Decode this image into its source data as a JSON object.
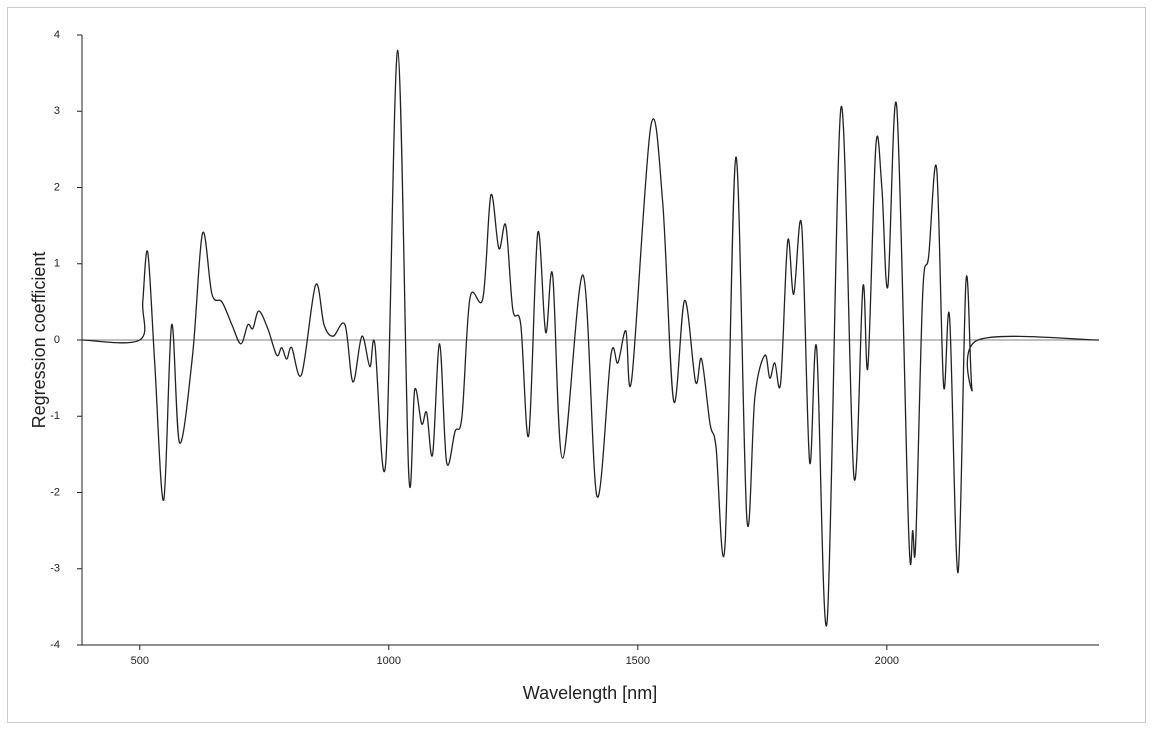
{
  "chart_data": {
    "type": "line",
    "xlabel": "Wavelength [nm]",
    "ylabel": "Regression coefficient",
    "xlim": [
      384,
      2426
    ],
    "ylim": [
      -4,
      4
    ],
    "xticks": [
      500,
      1000,
      1500,
      2000
    ],
    "yticks": [
      -4,
      -3,
      -2,
      -1,
      0,
      1,
      2,
      3,
      4
    ],
    "series": [
      {
        "name": "Regression coefficient",
        "color": "#222222",
        "x": [
          384,
          500,
          506,
          516,
          530,
          548,
          564,
          580,
          606,
          626,
          645,
          665,
          685,
          703,
          717,
          727,
          739,
          757,
          775,
          785,
          795,
          805,
          825,
          853,
          870,
          888,
          912,
          928,
          946,
          962,
          972,
          994,
          1018,
          1040,
          1052,
          1066,
          1076,
          1088,
          1102,
          1116,
          1133,
          1147,
          1163,
          1189,
          1205,
          1221,
          1235,
          1249,
          1265,
          1281,
          1299,
          1315,
          1329,
          1349,
          1390,
          1418,
          1446,
          1460,
          1476,
          1488,
          1526,
          1550,
          1572,
          1594,
          1616,
          1628,
          1645,
          1657,
          1675,
          1697,
          1719,
          1735,
          1755,
          1765,
          1775,
          1787,
          1801,
          1813,
          1829,
          1845,
          1859,
          1880,
          1908,
          1934,
          1952,
          1962,
          1978,
          1990,
          2002,
          2020,
          2044,
          2052,
          2058,
          2072,
          2084,
          2100,
          2114,
          2126,
          2143,
          2159,
          2171,
          2183,
          2426
        ],
        "values": [
          0,
          0,
          0.5,
          1.15,
          -0.3,
          -2.1,
          0.2,
          -1.35,
          -0.2,
          1.4,
          0.6,
          0.5,
          0.2,
          -0.05,
          0.2,
          0.15,
          0.38,
          0.15,
          -0.2,
          -0.1,
          -0.25,
          -0.1,
          -0.45,
          0.72,
          0.2,
          0.05,
          0.2,
          -0.55,
          0.05,
          -0.35,
          -0.05,
          -1.6,
          3.8,
          -1.75,
          -0.65,
          -1.1,
          -0.95,
          -1.5,
          -0.05,
          -1.6,
          -1.2,
          -1.0,
          0.55,
          0.55,
          1.9,
          1.2,
          1.5,
          0.4,
          0.2,
          -1.25,
          1.4,
          0.1,
          0.85,
          -1.55,
          0.85,
          -2.05,
          -0.2,
          -0.3,
          0.12,
          -0.5,
          2.8,
          1.8,
          -0.8,
          0.52,
          -0.55,
          -0.25,
          -1.1,
          -1.4,
          -2.7,
          2.4,
          -2.35,
          -0.75,
          -0.2,
          -0.5,
          -0.3,
          -0.55,
          1.3,
          0.6,
          1.5,
          -1.6,
          -0.1,
          -3.7,
          3.05,
          -1.8,
          0.7,
          -0.35,
          2.55,
          2.0,
          0.7,
          3.05,
          -2.55,
          -2.5,
          -2.65,
          0.6,
          1.1,
          2.25,
          -0.6,
          0.3,
          -3.05,
          0.78,
          -0.65,
          0,
          0
        ]
      }
    ]
  }
}
